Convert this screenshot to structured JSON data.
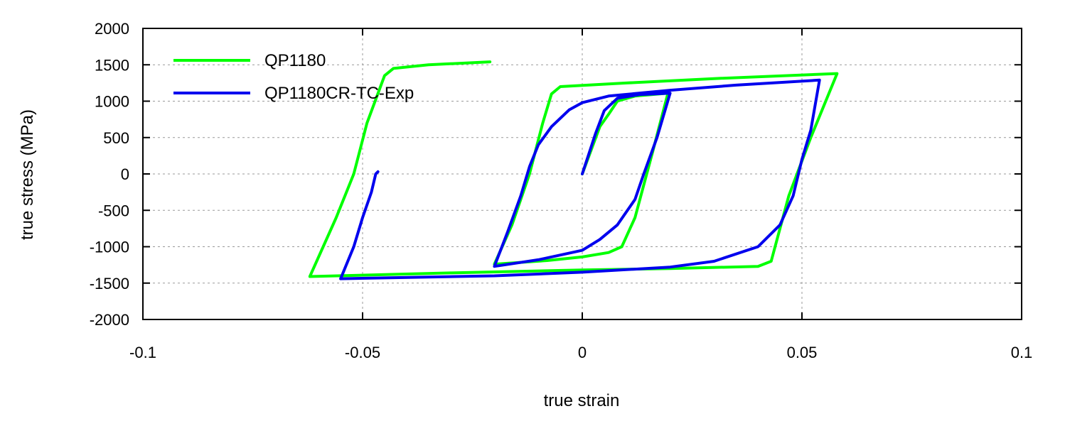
{
  "chart_data": {
    "type": "line",
    "title": "",
    "xlabel": "true strain",
    "ylabel": "true stress (MPa)",
    "xlim": [
      -0.1,
      0.1
    ],
    "ylim": [
      -2000,
      2000
    ],
    "x_ticks": [
      -0.1,
      -0.05,
      0,
      0.05,
      0.1
    ],
    "x_tick_labels": [
      "-0.1",
      "-0.05",
      "0",
      "0.05",
      "0.1"
    ],
    "y_ticks": [
      2000,
      1500,
      1000,
      500,
      0,
      -500,
      -1000,
      -1500,
      -2000
    ],
    "y_tick_labels": [
      "2000",
      "1500",
      "1000",
      "500",
      "0",
      "-500",
      "-1000",
      "-1500",
      "-2000"
    ],
    "grid": true,
    "legend_position": "top-left",
    "series": [
      {
        "name": "QP1180",
        "color": "#00ff00",
        "points": [
          [
            0,
            0
          ],
          [
            0.004,
            650
          ],
          [
            0.006,
            820
          ],
          [
            0.008,
            1000
          ],
          [
            0.012,
            1070
          ],
          [
            0.0195,
            1110
          ],
          [
            0.016,
            300
          ],
          [
            0.012,
            -600
          ],
          [
            0.009,
            -1000
          ],
          [
            0.006,
            -1080
          ],
          [
            0,
            -1140
          ],
          [
            -0.008,
            -1190
          ],
          [
            -0.02,
            -1240
          ],
          [
            -0.016,
            -700
          ],
          [
            -0.012,
            0
          ],
          [
            -0.009,
            700
          ],
          [
            -0.007,
            1100
          ],
          [
            -0.005,
            1200
          ],
          [
            0.01,
            1250
          ],
          [
            0.03,
            1310
          ],
          [
            0.058,
            1380
          ],
          [
            0.052,
            500
          ],
          [
            0.047,
            -300
          ],
          [
            0.043,
            -1200
          ],
          [
            0.04,
            -1270
          ],
          [
            0.02,
            -1300
          ],
          [
            0,
            -1320
          ],
          [
            -0.03,
            -1360
          ],
          [
            -0.062,
            -1410
          ],
          [
            -0.056,
            -600
          ],
          [
            -0.052,
            0
          ],
          [
            -0.049,
            700
          ],
          [
            -0.045,
            1350
          ],
          [
            -0.043,
            1450
          ],
          [
            -0.035,
            1500
          ],
          [
            -0.021,
            1540
          ]
        ]
      },
      {
        "name": "QP1180CR-TC-Exp",
        "color": "#0000ee",
        "points": [
          [
            0,
            0
          ],
          [
            0.003,
            550
          ],
          [
            0.005,
            870
          ],
          [
            0.008,
            1040
          ],
          [
            0.013,
            1090
          ],
          [
            0.02,
            1110
          ],
          [
            0.017,
            500
          ],
          [
            0.014,
            0
          ],
          [
            0.012,
            -350
          ],
          [
            0.008,
            -700
          ],
          [
            0.004,
            -900
          ],
          [
            0,
            -1050
          ],
          [
            -0.01,
            -1180
          ],
          [
            -0.02,
            -1270
          ],
          [
            -0.017,
            -800
          ],
          [
            -0.014,
            -300
          ],
          [
            -0.012,
            100
          ],
          [
            -0.01,
            400
          ],
          [
            -0.007,
            650
          ],
          [
            -0.003,
            880
          ],
          [
            0,
            980
          ],
          [
            0.006,
            1070
          ],
          [
            0.02,
            1150
          ],
          [
            0.035,
            1220
          ],
          [
            0.054,
            1290
          ],
          [
            0.052,
            600
          ],
          [
            0.05,
            200
          ],
          [
            0.048,
            -300
          ],
          [
            0.045,
            -700
          ],
          [
            0.04,
            -1000
          ],
          [
            0.03,
            -1200
          ],
          [
            0.02,
            -1280
          ],
          [
            0,
            -1350
          ],
          [
            -0.02,
            -1400
          ],
          [
            -0.055,
            -1440
          ],
          [
            -0.052,
            -1000
          ],
          [
            -0.05,
            -600
          ],
          [
            -0.048,
            -250
          ],
          [
            -0.047,
            0
          ],
          [
            -0.0465,
            30
          ]
        ]
      }
    ]
  }
}
